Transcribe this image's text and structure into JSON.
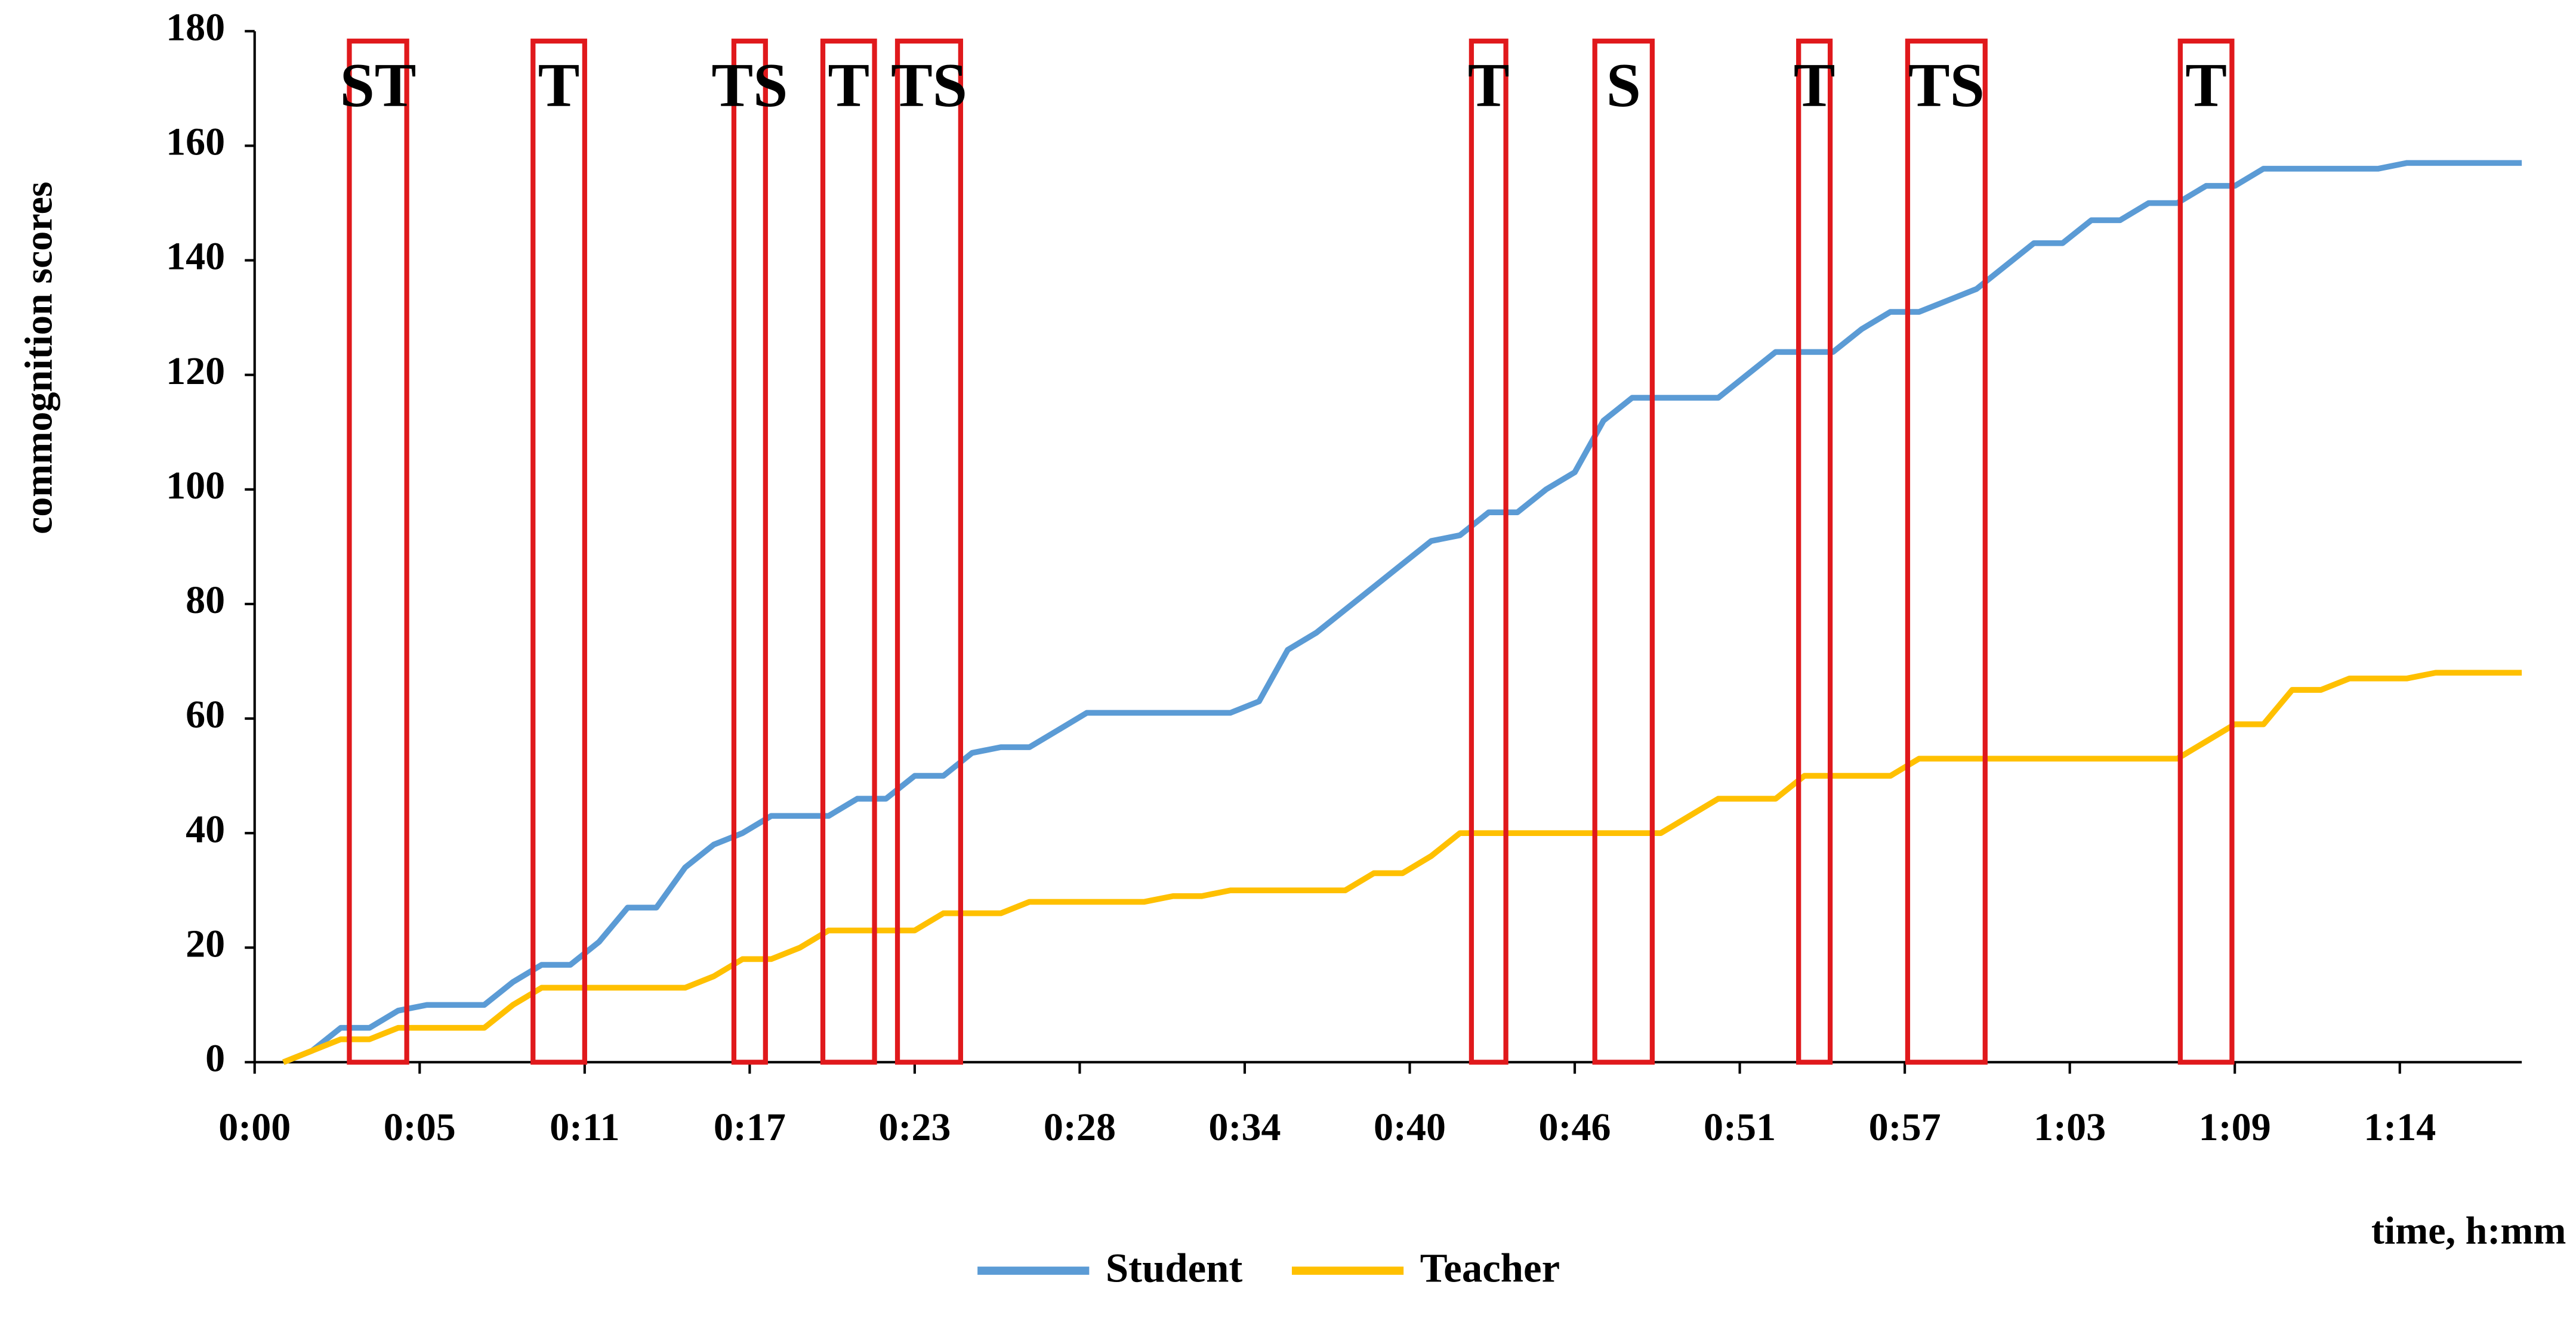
{
  "chart_data": {
    "type": "line",
    "y_axis_label": "commognition scores",
    "x_axis_label": "time, h:mm",
    "x": [
      1,
      2,
      3,
      4,
      5,
      6,
      7,
      8,
      9,
      10,
      11,
      12,
      13,
      14,
      15,
      16,
      17,
      18,
      19,
      20,
      21,
      22,
      23,
      24,
      25,
      26,
      27,
      28,
      29,
      30,
      31,
      32,
      33,
      34,
      35,
      36,
      37,
      38,
      39,
      40,
      41,
      42,
      43,
      44,
      45,
      46,
      47,
      48,
      49,
      50,
      51,
      52,
      53,
      54,
      55,
      56,
      57,
      58,
      59,
      60,
      61,
      62,
      63,
      64,
      65,
      66,
      67,
      68,
      69,
      70,
      71,
      72,
      73,
      74,
      75,
      76,
      77,
      78,
      79
    ],
    "series": [
      {
        "name": "Student",
        "color": "#5b9bd5",
        "values": [
          0,
          2,
          6,
          6,
          9,
          10,
          10,
          10,
          14,
          17,
          17,
          21,
          27,
          27,
          34,
          38,
          40,
          43,
          43,
          43,
          46,
          46,
          50,
          50,
          54,
          55,
          55,
          58,
          61,
          61,
          61,
          61,
          61,
          61,
          63,
          72,
          75,
          79,
          83,
          87,
          91,
          92,
          96,
          96,
          100,
          103,
          112,
          116,
          116,
          116,
          116,
          120,
          124,
          124,
          124,
          128,
          131,
          131,
          133,
          135,
          139,
          143,
          143,
          147,
          147,
          150,
          150,
          153,
          153,
          156,
          156,
          156,
          156,
          156,
          157,
          157,
          157,
          157,
          157
        ]
      },
      {
        "name": "Teacher",
        "color": "#ffc000",
        "values": [
          0,
          2,
          4,
          4,
          6,
          6,
          6,
          6,
          10,
          13,
          13,
          13,
          13,
          13,
          13,
          15,
          18,
          18,
          20,
          23,
          23,
          23,
          23,
          26,
          26,
          26,
          28,
          28,
          28,
          28,
          28,
          29,
          29,
          30,
          30,
          30,
          30,
          30,
          33,
          33,
          36,
          40,
          40,
          40,
          40,
          40,
          40,
          40,
          40,
          43,
          46,
          46,
          46,
          50,
          50,
          50,
          50,
          53,
          53,
          53,
          53,
          53,
          53,
          53,
          53,
          53,
          53,
          56,
          59,
          59,
          65,
          65,
          67,
          67,
          67,
          68,
          68,
          68,
          68
        ]
      }
    ],
    "annotations": [
      {
        "label": "ST",
        "x": [
          3.3,
          5.3
        ]
      },
      {
        "label": "T",
        "x": [
          9.7,
          11.5
        ]
      },
      {
        "label": "TS",
        "x": [
          16.7,
          17.8
        ]
      },
      {
        "label": "T",
        "x": [
          19.8,
          21.6
        ]
      },
      {
        "label": "TS",
        "x": [
          22.4,
          24.6
        ]
      },
      {
        "label": "T",
        "x": [
          42.4,
          43.6
        ]
      },
      {
        "label": "S",
        "x": [
          46.7,
          48.7
        ]
      },
      {
        "label": "T",
        "x": [
          53.8,
          54.9
        ]
      },
      {
        "label": "TS",
        "x": [
          57.6,
          60.3
        ]
      },
      {
        "label": "T",
        "x": [
          67.1,
          68.9
        ]
      }
    ],
    "annotation_color": "#e0191c",
    "xlim": [
      0,
      79
    ],
    "xticks": [
      {
        "value": 0,
        "label": "0:00"
      },
      {
        "value": 5.75,
        "label": "0:05"
      },
      {
        "value": 11.5,
        "label": "0:11"
      },
      {
        "value": 17.25,
        "label": "0:17"
      },
      {
        "value": 23,
        "label": "0:23"
      },
      {
        "value": 28.75,
        "label": "0:28"
      },
      {
        "value": 34.5,
        "label": "0:34"
      },
      {
        "value": 40.25,
        "label": "0:40"
      },
      {
        "value": 46,
        "label": "0:46"
      },
      {
        "value": 51.75,
        "label": "0:51"
      },
      {
        "value": 57.5,
        "label": "0:57"
      },
      {
        "value": 63.25,
        "label": "1:03"
      },
      {
        "value": 69,
        "label": "1:09"
      },
      {
        "value": 74.75,
        "label": "1:14"
      }
    ],
    "ylim": [
      0,
      180
    ],
    "yticks": [
      0,
      20,
      40,
      60,
      80,
      100,
      120,
      140,
      160,
      180
    ],
    "grid": false
  }
}
